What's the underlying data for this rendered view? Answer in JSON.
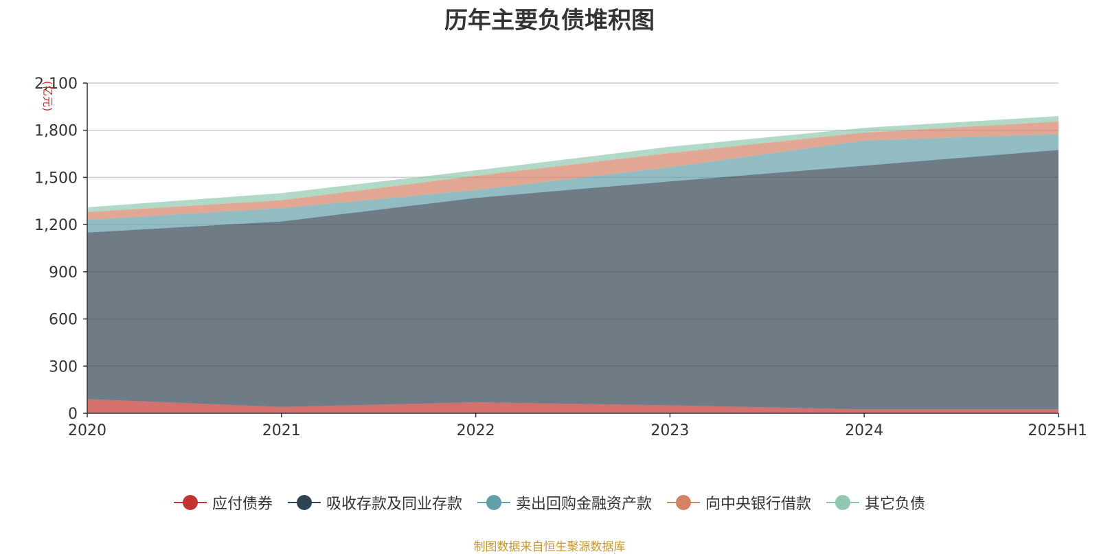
{
  "chart_data": {
    "type": "area",
    "stacked": true,
    "title": "历年主要负债堆积图",
    "yunit": "(亿元)",
    "xlabel": "",
    "ylabel": "",
    "categories": [
      "2020",
      "2021",
      "2022",
      "2023",
      "2024",
      "2025H1"
    ],
    "ylim": [
      0,
      2100
    ],
    "yticks": [
      0,
      300,
      600,
      900,
      1200,
      1500,
      1800,
      2100
    ],
    "ytick_labels": [
      "0",
      "300",
      "600",
      "900",
      "1,200",
      "1,500",
      "1,800",
      "2,100"
    ],
    "grid": true,
    "legend_position": "bottom",
    "series": [
      {
        "name": "应付债券",
        "color": "#c23531",
        "values": [
          90,
          40,
          70,
          50,
          25,
          25
        ]
      },
      {
        "name": "吸收存款及同业存款",
        "color": "#2f4554",
        "values": [
          1060,
          1180,
          1300,
          1425,
          1550,
          1650
        ]
      },
      {
        "name": "卖出回购金融资产款",
        "color": "#61a0a8",
        "values": [
          80,
          85,
          50,
          90,
          160,
          100
        ]
      },
      {
        "name": "向中央银行借款",
        "color": "#d48265",
        "values": [
          50,
          50,
          90,
          90,
          50,
          80
        ]
      },
      {
        "name": "其它负债",
        "color": "#91c7ae",
        "values": [
          30,
          45,
          35,
          40,
          30,
          35
        ]
      }
    ]
  },
  "source_note": "制图数据来自恒生聚源数据库"
}
